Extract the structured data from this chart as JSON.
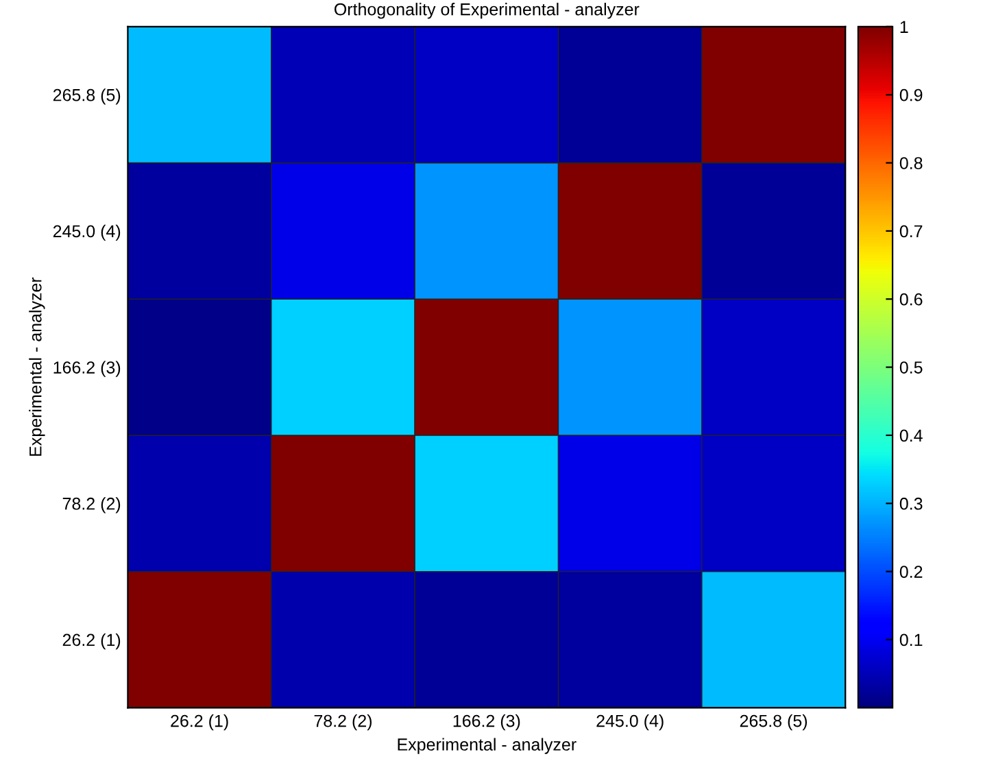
{
  "chart_data": {
    "type": "heatmap",
    "title": "Orthogonality of Experimental - analyzer",
    "xlabel": "Experimental - analyzer",
    "ylabel": "Experimental - analyzer",
    "categories": [
      "26.2 (1)",
      "78.2 (2)",
      "166.2 (3)",
      "245.0 (4)",
      "265.8 (5)"
    ],
    "y_categories": [
      "265.8 (5)",
      "245.0 (4)",
      "166.2 (3)",
      "78.2 (2)",
      "26.2 (1)"
    ],
    "cells": [
      [
        0.31,
        0.05,
        0.06,
        0.02,
        1
      ],
      [
        0.03,
        0.09,
        0.27,
        1,
        0.02
      ],
      [
        0.01,
        0.33,
        1,
        0.27,
        0.06
      ],
      [
        0.04,
        1,
        0.33,
        0.09,
        0.06
      ],
      [
        1,
        0.04,
        0.02,
        0.03,
        0.31
      ]
    ],
    "clim": [
      0,
      1
    ],
    "cticks": [
      0.1,
      0.2,
      0.3,
      0.4,
      0.5,
      0.6,
      0.7,
      0.8,
      0.9,
      1
    ]
  }
}
